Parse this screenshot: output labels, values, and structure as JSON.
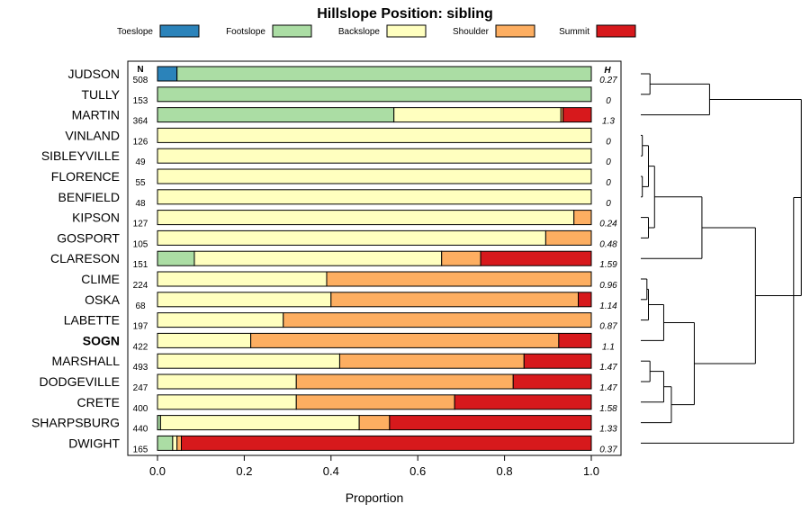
{
  "chart_data": {
    "type": "bar",
    "subtype": "stacked-proportion-horizontal",
    "title": "Hillslope Position: sibling",
    "xlabel": "Proportion",
    "ylabel": "",
    "xlim": [
      0,
      1
    ],
    "x_ticks": [
      "0.0",
      "0.2",
      "0.4",
      "0.6",
      "0.8",
      "1.0"
    ],
    "legend_position": "top",
    "n_header": "N",
    "h_header": "H",
    "highlighted_series": "SOGN",
    "legend": [
      {
        "name": "Toeslope",
        "color": "#2B83BA"
      },
      {
        "name": "Footslope",
        "color": "#ABDDA4"
      },
      {
        "name": "Backslope",
        "color": "#FFFFBF"
      },
      {
        "name": "Shoulder",
        "color": "#FDAE61"
      },
      {
        "name": "Summit",
        "color": "#D7191C"
      }
    ],
    "series": [
      {
        "name": "JUDSON",
        "n": "508",
        "h": "0.27",
        "values": [
          0.045,
          0.955,
          0,
          0,
          0
        ]
      },
      {
        "name": "TULLY",
        "n": "153",
        "h": "0",
        "values": [
          0,
          1.0,
          0,
          0,
          0
        ]
      },
      {
        "name": "MARTIN",
        "n": "364",
        "h": "1.3",
        "values": [
          0,
          0.545,
          0.385,
          0.005,
          0.065
        ]
      },
      {
        "name": "VINLAND",
        "n": "126",
        "h": "0",
        "values": [
          0,
          0,
          1.0,
          0,
          0
        ]
      },
      {
        "name": "SIBLEYVILLE",
        "n": "49",
        "h": "0",
        "values": [
          0,
          0,
          1.0,
          0,
          0
        ]
      },
      {
        "name": "FLORENCE",
        "n": "55",
        "h": "0",
        "values": [
          0,
          0,
          1.0,
          0,
          0
        ]
      },
      {
        "name": "BENFIELD",
        "n": "48",
        "h": "0",
        "values": [
          0,
          0,
          1.0,
          0,
          0
        ]
      },
      {
        "name": "KIPSON",
        "n": "127",
        "h": "0.24",
        "values": [
          0,
          0,
          0.96,
          0.04,
          0
        ]
      },
      {
        "name": "GOSPORT",
        "n": "105",
        "h": "0.48",
        "values": [
          0,
          0,
          0.895,
          0.105,
          0
        ]
      },
      {
        "name": "CLARESON",
        "n": "151",
        "h": "1.59",
        "values": [
          0,
          0.085,
          0.57,
          0.09,
          0.255
        ]
      },
      {
        "name": "CLIME",
        "n": "224",
        "h": "0.96",
        "values": [
          0,
          0,
          0.39,
          0.61,
          0
        ]
      },
      {
        "name": "OSKA",
        "n": "68",
        "h": "1.14",
        "values": [
          0,
          0,
          0.4,
          0.57,
          0.03
        ]
      },
      {
        "name": "LABETTE",
        "n": "197",
        "h": "0.87",
        "values": [
          0,
          0,
          0.29,
          0.71,
          0
        ]
      },
      {
        "name": "SOGN",
        "n": "422",
        "h": "1.1",
        "values": [
          0,
          0,
          0.215,
          0.71,
          0.075
        ]
      },
      {
        "name": "MARSHALL",
        "n": "493",
        "h": "1.47",
        "values": [
          0,
          0,
          0.42,
          0.425,
          0.155
        ]
      },
      {
        "name": "DODGEVILLE",
        "n": "247",
        "h": "1.47",
        "values": [
          0,
          0,
          0.32,
          0.5,
          0.18
        ]
      },
      {
        "name": "CRETE",
        "n": "400",
        "h": "1.58",
        "values": [
          0,
          0,
          0.32,
          0.365,
          0.315
        ]
      },
      {
        "name": "SHARPSBURG",
        "n": "440",
        "h": "1.33",
        "values": [
          0,
          0.007,
          0.458,
          0.07,
          0.465
        ]
      },
      {
        "name": "DWIGHT",
        "n": "165",
        "h": "0.37",
        "values": [
          0,
          0.035,
          0.01,
          0.01,
          0.945
        ]
      }
    ],
    "dendrogram": {
      "description": "hierarchical clustering of series, leaves in row order",
      "merges": [
        {
          "a": "JUDSON",
          "b": "TULLY",
          "height": 0.06
        },
        {
          "a": "cl:JUDSON+TULLY",
          "b": "MARTIN",
          "height": 0.45
        },
        {
          "a": "VINLAND",
          "b": "SIBLEYVILLE",
          "height": 0.01
        },
        {
          "a": "FLORENCE",
          "b": "BENFIELD",
          "height": 0.01
        },
        {
          "a": "cl:VINLAND+SIBLEYVILLE",
          "b": "cl:FLORENCE+BENFIELD",
          "height": 0.05
        },
        {
          "a": "KIPSON",
          "b": "GOSPORT",
          "height": 0.05
        },
        {
          "a": "cl:V-B",
          "b": "cl:KIPSON+GOSPORT",
          "height": 0.09
        },
        {
          "a": "cl:V-G",
          "b": "CLARESON",
          "height": 0.4
        },
        {
          "a": "CLIME",
          "b": "OSKA",
          "height": 0.04
        },
        {
          "a": "cl:CLIME+OSKA",
          "b": "LABETTE",
          "height": 0.05
        },
        {
          "a": "cl:C-L",
          "b": "SOGN",
          "height": 0.15
        },
        {
          "a": "MARSHALL",
          "b": "DODGEVILLE",
          "height": 0.06
        },
        {
          "a": "cl:MARSHALL+DODGEVILLE",
          "b": "CRETE",
          "height": 0.15
        },
        {
          "a": "cl:M-C",
          "b": "SHARPSBURG",
          "height": 0.2
        },
        {
          "a": "cl:C-S",
          "b": "cl:M-SH",
          "height": 0.35
        },
        {
          "a": "cl:V-CL",
          "b": "cl:C-SH",
          "height": 0.75
        },
        {
          "a": "cl:J-M",
          "b": "cl:V-SH",
          "height": 1.05
        },
        {
          "a": "cl:J-SH",
          "b": "DWIGHT",
          "height": 1.0
        }
      ]
    }
  }
}
